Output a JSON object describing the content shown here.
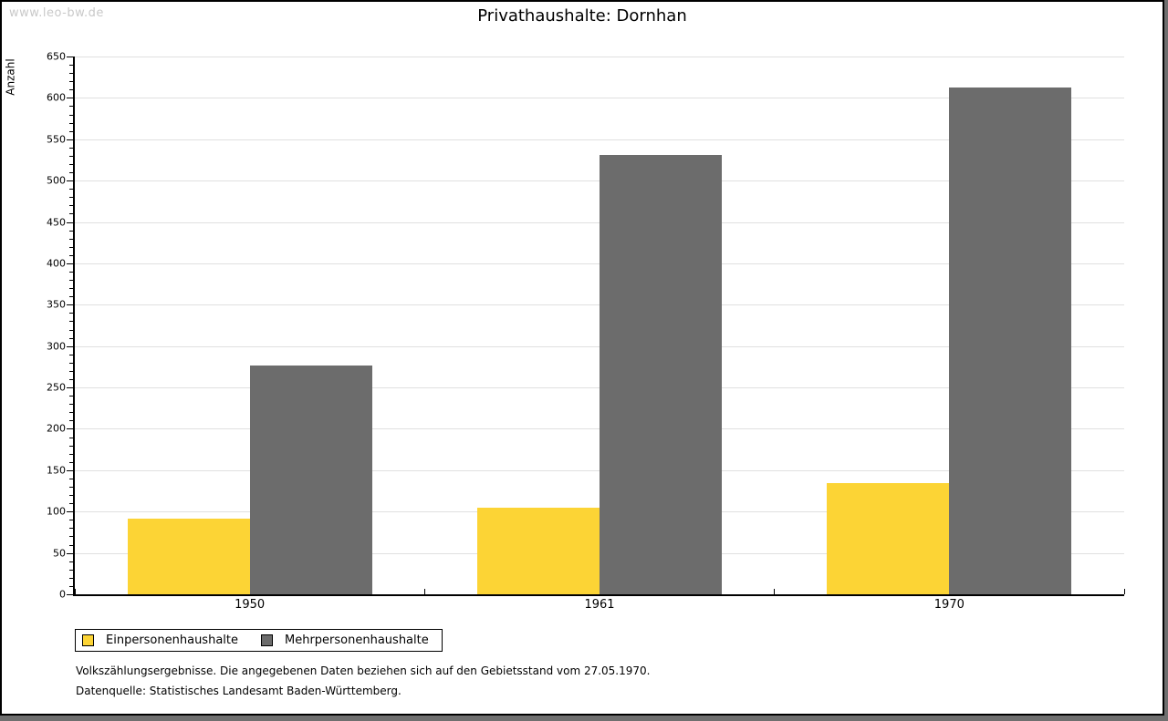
{
  "watermark": "www.leo-bw.de",
  "chart_data": {
    "type": "bar",
    "title": "Privathaushalte: Dornhan",
    "categories": [
      "1950",
      "1961",
      "1970"
    ],
    "series": [
      {
        "name": "Einpersonenhaushalte",
        "color": "#FCD435",
        "values": [
          91,
          105,
          134
        ]
      },
      {
        "name": "Mehrpersonenhaushalte",
        "color": "#6C6C6C",
        "values": [
          277,
          531,
          613
        ]
      }
    ],
    "xlabel": "",
    "ylabel": "Anzahl",
    "ylim": [
      0,
      650
    ],
    "ytick_major": 50,
    "ytick_minor": 10,
    "grid": true,
    "legend_position": "bottom-left"
  },
  "footnotes": [
    "Volkszählungsergebnisse. Die angegebenen Daten beziehen sich auf den Gebietsstand vom 27.05.1970.",
    "Datenquelle: Statistisches Landesamt Baden-Württemberg."
  ],
  "colors": {
    "grid": "#E0E0E0",
    "axis": "#000000",
    "watermark": "#C9C9C9",
    "frame_border": "#000000",
    "shadow": "#6F6F6F",
    "background": "#FFFFFF"
  }
}
